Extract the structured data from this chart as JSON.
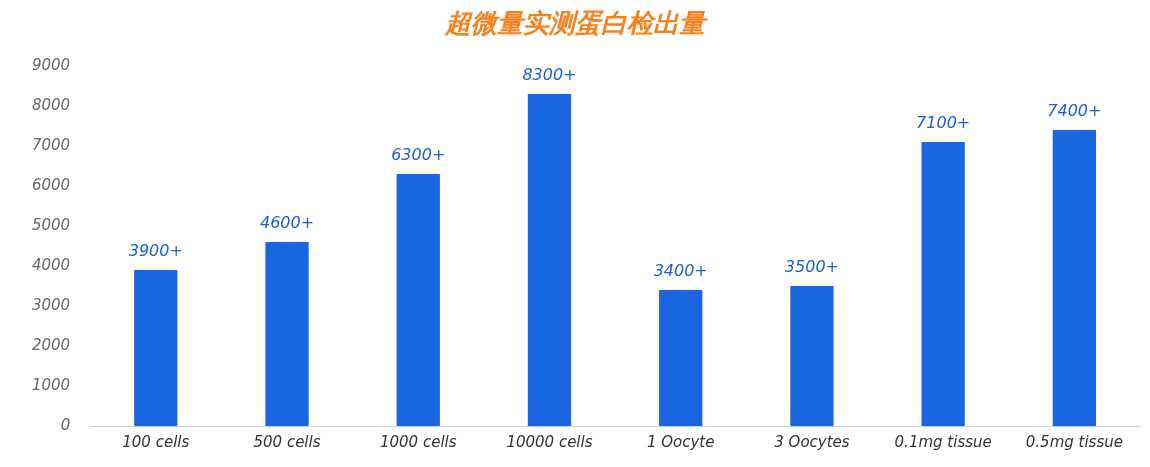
{
  "chart_data": {
    "type": "bar",
    "title": "超微量实测蛋白检出量",
    "categories": [
      "100 cells",
      "500 cells",
      "1000 cells",
      "10000 cells",
      "1 Oocyte",
      "3 Oocytes",
      "0.1mg tissue",
      "0.5mg tissue"
    ],
    "values": [
      3900,
      4600,
      6300,
      8300,
      3400,
      3500,
      7100,
      7400
    ],
    "value_labels": [
      "3900+",
      "4600+",
      "6300+",
      "8300+",
      "3400+",
      "3500+",
      "7100+",
      "7400+"
    ],
    "color": "#1a66e0",
    "ylim": [
      0,
      9000
    ],
    "yticks": [
      0,
      1000,
      2000,
      3000,
      4000,
      5000,
      6000,
      7000,
      8000,
      9000
    ],
    "grid": false,
    "legend": false
  }
}
